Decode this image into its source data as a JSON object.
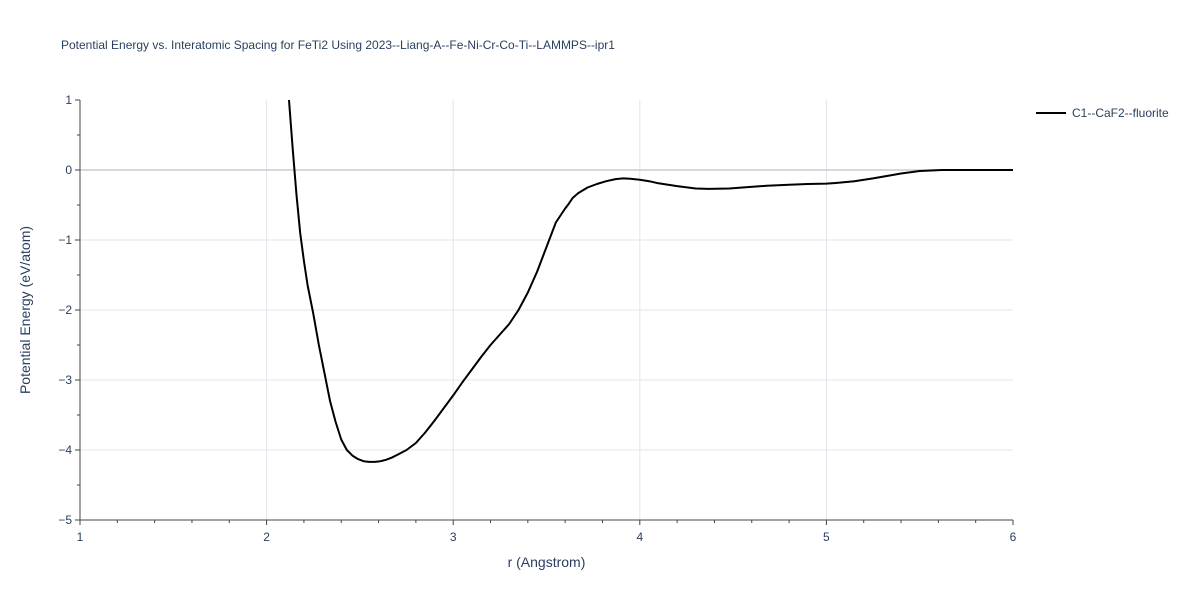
{
  "chart_data": {
    "type": "line",
    "title": "Potential Energy vs. Interatomic Spacing for FeTi2 Using 2023--Liang-A--Fe-Ni-Cr-Co-Ti--LAMMPS--ipr1",
    "xlabel": "r (Angstrom)",
    "ylabel": "Potential Energy (eV/atom)",
    "xlim": [
      1,
      6
    ],
    "ylim": [
      -5,
      1
    ],
    "x_ticks": [
      "1",
      "2",
      "3",
      "4",
      "5",
      "6"
    ],
    "y_ticks": [
      "1",
      "0",
      "−1",
      "−2",
      "−3",
      "−4",
      "−5"
    ],
    "grid": true,
    "legend_position": "top-right",
    "series": [
      {
        "name": "C1--CaF2--fluorite",
        "color": "#000000",
        "x": [
          2.12,
          2.14,
          2.16,
          2.18,
          2.2,
          2.22,
          2.25,
          2.28,
          2.31,
          2.34,
          2.37,
          2.4,
          2.43,
          2.46,
          2.49,
          2.52,
          2.55,
          2.58,
          2.61,
          2.64,
          2.67,
          2.7,
          2.75,
          2.8,
          2.85,
          2.9,
          2.95,
          3.0,
          3.05,
          3.1,
          3.15,
          3.2,
          3.25,
          3.3,
          3.35,
          3.4,
          3.45,
          3.5,
          3.55,
          3.6,
          3.62,
          3.64,
          3.67,
          3.72,
          3.77,
          3.82,
          3.87,
          3.91,
          3.95,
          4.0,
          4.05,
          4.1,
          4.2,
          4.3,
          4.37,
          4.48,
          4.55,
          4.68,
          4.8,
          4.9,
          5.0,
          5.05,
          5.15,
          5.25,
          5.4,
          5.5,
          5.62,
          5.75,
          5.9,
          6.0
        ],
        "y": [
          1.0,
          0.3,
          -0.35,
          -0.9,
          -1.3,
          -1.65,
          -2.05,
          -2.5,
          -2.9,
          -3.3,
          -3.6,
          -3.85,
          -4.0,
          -4.08,
          -4.13,
          -4.16,
          -4.17,
          -4.17,
          -4.16,
          -4.14,
          -4.11,
          -4.07,
          -4.0,
          -3.9,
          -3.75,
          -3.58,
          -3.4,
          -3.22,
          -3.03,
          -2.85,
          -2.67,
          -2.5,
          -2.35,
          -2.2,
          -2.0,
          -1.75,
          -1.45,
          -1.1,
          -0.75,
          -0.55,
          -0.48,
          -0.4,
          -0.33,
          -0.25,
          -0.2,
          -0.16,
          -0.13,
          -0.12,
          -0.125,
          -0.14,
          -0.16,
          -0.19,
          -0.23,
          -0.265,
          -0.27,
          -0.265,
          -0.25,
          -0.225,
          -0.21,
          -0.2,
          -0.195,
          -0.185,
          -0.16,
          -0.12,
          -0.05,
          -0.015,
          0.0,
          0.0,
          0.0,
          0.0
        ]
      }
    ]
  }
}
